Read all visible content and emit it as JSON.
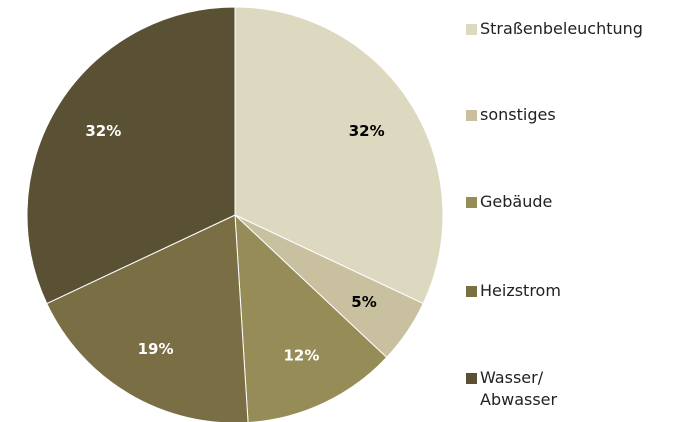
{
  "chart_data": {
    "type": "pie",
    "categories": [
      "Straßenbeleuchtung",
      "sonstiges",
      "Gebäude",
      "Heizstrom",
      "Wasser/ Abwasser"
    ],
    "values": [
      32,
      5,
      12,
      19,
      32
    ],
    "value_labels": [
      "32%",
      "5%",
      "12%",
      "19%",
      "32%"
    ],
    "colors": [
      "#ddd8c0",
      "#c8c09e",
      "#968c57",
      "#7a6e45",
      "#5a5034"
    ],
    "legend": "right"
  }
}
